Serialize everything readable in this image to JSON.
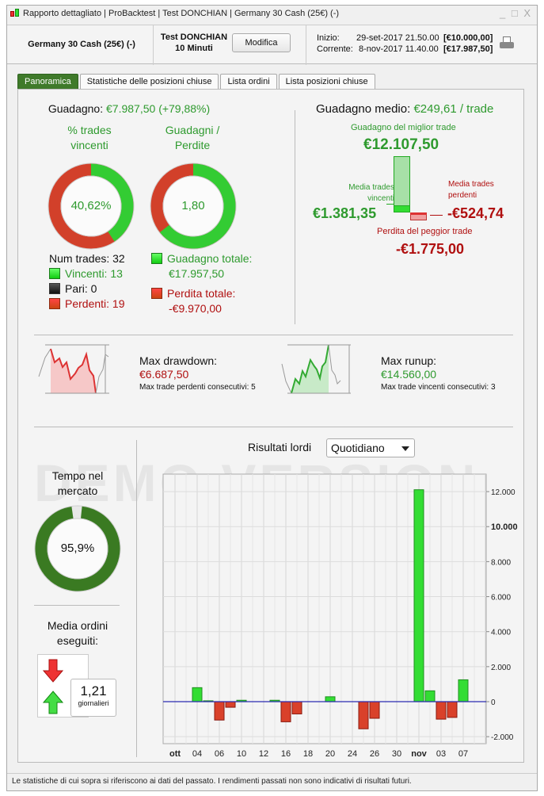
{
  "window": {
    "title": "Rapporto dettagliato | ProBacktest | Test DONCHIAN | Germany 30 Cash (25€) (-)",
    "controls": "_ □ X"
  },
  "header": {
    "instrument": "Germany 30 Cash (25€) (-)",
    "test_name": "Test DONCHIAN",
    "timeframe": "10 Minuti",
    "edit_button": "Modifica",
    "start_label": "Inizio:",
    "start_date": "29-set-2017 21.50.00",
    "start_value": "[€10.000,00]",
    "current_label": "Corrente:",
    "current_date": "8-nov-2017 11.40.00",
    "current_value": "[€17.987,50]"
  },
  "tabs": [
    {
      "label": "Panoramica",
      "active": true
    },
    {
      "label": "Statistiche delle posizioni chiuse"
    },
    {
      "label": "Lista ordini"
    },
    {
      "label": "Lista posizioni chiuse"
    }
  ],
  "summary": {
    "gain_label": "Guadagno:",
    "gain_value": "€7.987,50 (+79,88%)",
    "win_pct_title1": "% trades",
    "win_pct_title2": "vincenti",
    "win_pct_value": "40,62%",
    "win_pct": 40.62,
    "gl_title1": "Guadagni /",
    "gl_title2": "Perdite",
    "gl_value": "1,80",
    "gl_green_fraction": 0.643,
    "num_trades": "Num trades: 32",
    "winners": "Vincenti: 13",
    "even": "Pari: 0",
    "losers": "Perdenti: 19",
    "total_gain_label": "Guadagno totale:",
    "total_gain": "€17.957,50",
    "total_loss_label": "Perdita totale:",
    "total_loss": "-€9.970,00"
  },
  "avg": {
    "label": "Guadagno medio:",
    "value": "€249,61 / trade",
    "best_label": "Guadagno del miglior trade",
    "best_value": "€12.107,50",
    "avg_win_label1": "Media trades",
    "avg_win_label2": "vincenti",
    "avg_win_value": "€1.381,35",
    "avg_loss_label1": "Media trades",
    "avg_loss_label2": "perdenti",
    "avg_loss_value": "-€524,74",
    "worst_label": "Perdita del peggior trade",
    "worst_value": "-€1.775,00"
  },
  "drawdown": {
    "label": "Max drawdown:",
    "value": "€6.687,50",
    "consec": "Max trade perdenti consecutivi:  5"
  },
  "runup": {
    "label": "Max runup:",
    "value": "€14.560,00",
    "consec": "Max trade vincenti consecutivi: 3"
  },
  "watermark": "DEMO VERSION",
  "market_time": {
    "title1": "Tempo nel",
    "title2": "mercato",
    "value": "95,9%",
    "pct": 95.9
  },
  "orders": {
    "title1": "Media ordini",
    "title2": "eseguiti:",
    "value": "1,21",
    "unit": "giornalieri"
  },
  "results": {
    "label": "Risultati lordi",
    "period": "Quotidiano"
  },
  "colors": {
    "green": "#2e9a2e",
    "red": "#b01010",
    "tab_active": "#3f7a2a"
  },
  "chart_data": {
    "type": "bar",
    "title": "Risultati lordi",
    "ylim": [
      -2400,
      13000
    ],
    "yticks": [
      {
        "v": 12000,
        "l": "12.000"
      },
      {
        "v": 10000,
        "l": "10.000",
        "bold": true
      },
      {
        "v": 8000,
        "l": "8.000"
      },
      {
        "v": 6000,
        "l": "6.000"
      },
      {
        "v": 4000,
        "l": "4.000"
      },
      {
        "v": 2000,
        "l": "2.000"
      },
      {
        "v": 0,
        "l": "0"
      },
      {
        "v": -2000,
        "l": "-2.000"
      }
    ],
    "xticks": [
      {
        "slot": 0,
        "l": "ott",
        "bold": true
      },
      {
        "slot": 2,
        "l": "04"
      },
      {
        "slot": 4,
        "l": "06"
      },
      {
        "slot": 6,
        "l": "10"
      },
      {
        "slot": 8,
        "l": "12"
      },
      {
        "slot": 10,
        "l": "16"
      },
      {
        "slot": 12,
        "l": "18"
      },
      {
        "slot": 14,
        "l": "20"
      },
      {
        "slot": 16,
        "l": "24"
      },
      {
        "slot": 18,
        "l": "26"
      },
      {
        "slot": 20,
        "l": "30"
      },
      {
        "slot": 22,
        "l": "nov",
        "bold": true
      },
      {
        "slot": 24,
        "l": "03"
      },
      {
        "slot": 26,
        "l": "07"
      }
    ],
    "bars": [
      {
        "slot": 2,
        "date": "04 ott",
        "v": 800
      },
      {
        "slot": 3,
        "date": "05 ott",
        "v": 50
      },
      {
        "slot": 4,
        "date": "06 ott",
        "v": -1050
      },
      {
        "slot": 5,
        "date": "09 ott",
        "v": -320
      },
      {
        "slot": 6,
        "date": "10 ott",
        "v": 80
      },
      {
        "slot": 9,
        "date": "13 ott",
        "v": 80
      },
      {
        "slot": 10,
        "date": "16 ott",
        "v": -1150
      },
      {
        "slot": 11,
        "date": "17 ott",
        "v": -700
      },
      {
        "slot": 14,
        "date": "20 ott",
        "v": 280
      },
      {
        "slot": 17,
        "date": "25 ott",
        "v": -1550
      },
      {
        "slot": 18,
        "date": "26 ott",
        "v": -950
      },
      {
        "slot": 22,
        "date": "01 nov",
        "v": 12107.5
      },
      {
        "slot": 23,
        "date": "02 nov",
        "v": 620
      },
      {
        "slot": 24,
        "date": "03 nov",
        "v": -1000
      },
      {
        "slot": 25,
        "date": "06 nov",
        "v": -900
      },
      {
        "slot": 26,
        "date": "07 nov",
        "v": 1250
      }
    ]
  },
  "footer": "Le statistiche di cui sopra si riferiscono ai dati del passato. I rendimenti passati non sono indicativi di risultati futuri."
}
